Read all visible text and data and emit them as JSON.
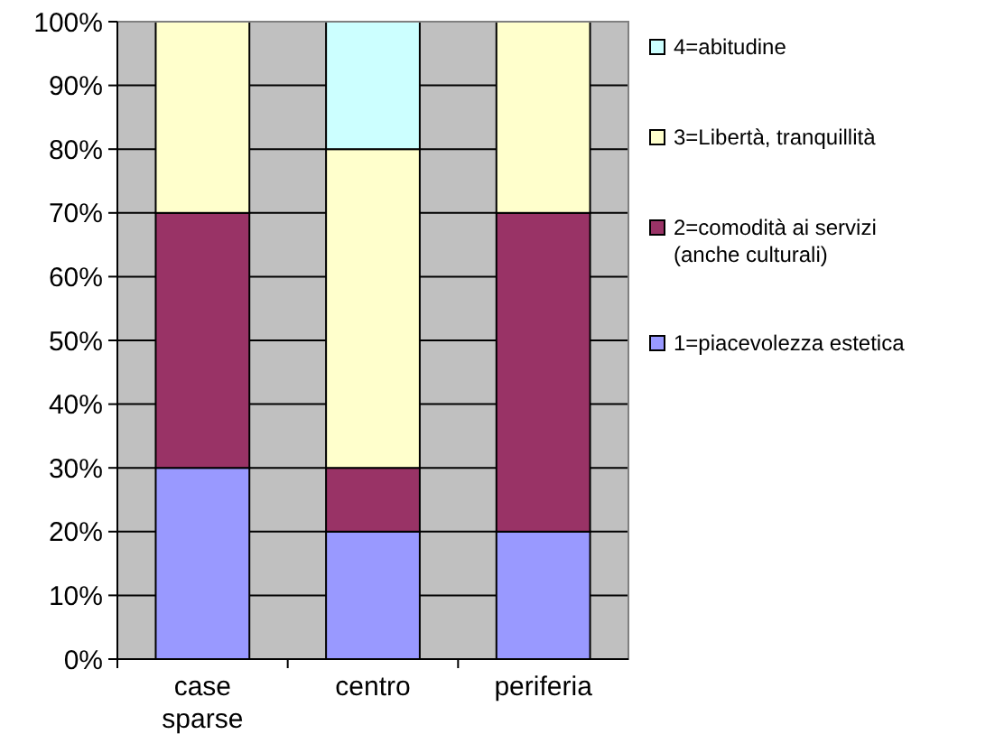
{
  "chart_data": {
    "type": "bar",
    "stacked": true,
    "categories": [
      "case sparse",
      "centro",
      "periferia"
    ],
    "series": [
      {
        "name": "1=piacevolezza estetica",
        "color": "#9999ff",
        "values": [
          30,
          20,
          20
        ]
      },
      {
        "name": "2=comodità ai servizi (anche culturali)",
        "color": "#993366",
        "values": [
          40,
          10,
          50
        ]
      },
      {
        "name": "3=Libertà, tranquillità",
        "color": "#ffffcc",
        "values": [
          30,
          50,
          30
        ]
      },
      {
        "name": "4=abitudine",
        "color": "#ccffff",
        "values": [
          0,
          20,
          0
        ]
      }
    ],
    "ylim": [
      0,
      100
    ],
    "yticks": [
      {
        "value": 0,
        "label": "0%"
      },
      {
        "value": 10,
        "label": "10%"
      },
      {
        "value": 20,
        "label": "20%"
      },
      {
        "value": 30,
        "label": "30%"
      },
      {
        "value": 40,
        "label": "40%"
      },
      {
        "value": 50,
        "label": "50%"
      },
      {
        "value": 60,
        "label": "60%"
      },
      {
        "value": 70,
        "label": "70%"
      },
      {
        "value": 80,
        "label": "80%"
      },
      {
        "value": 90,
        "label": "90%"
      },
      {
        "value": 100,
        "label": "100%"
      }
    ],
    "grid": "y",
    "legend": "right"
  }
}
